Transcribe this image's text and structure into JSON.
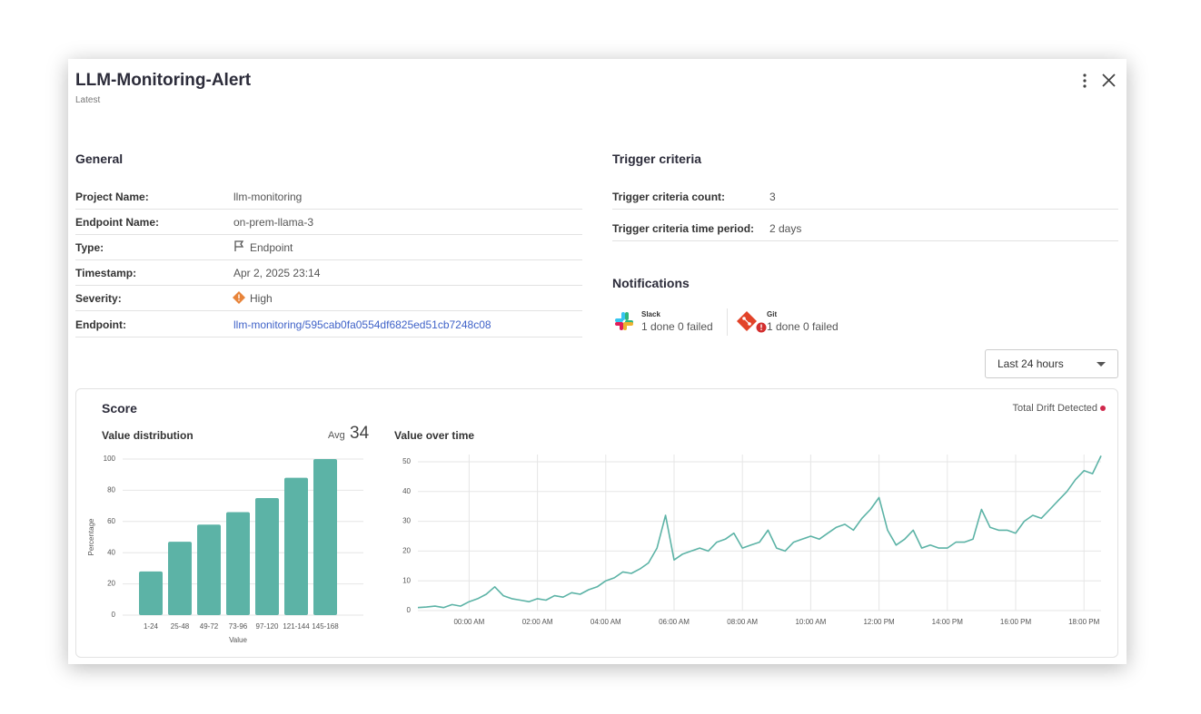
{
  "header": {
    "title": "LLM-Monitoring-Alert",
    "subtitle": "Latest"
  },
  "general": {
    "heading": "General",
    "rows": [
      {
        "label": "Project Name:",
        "value": "llm-monitoring"
      },
      {
        "label": "Endpoint Name:",
        "value": "on-prem-llama-3"
      },
      {
        "label": "Type:",
        "value": "Endpoint"
      },
      {
        "label": "Timestamp:",
        "value": "Apr 2, 2025 23:14"
      },
      {
        "label": "Severity:",
        "value": "High"
      },
      {
        "label": "Endpoint:",
        "value": "llm-monitoring/595cab0fa0554df6825ed51cb7248c08"
      }
    ]
  },
  "trigger": {
    "heading": "Trigger criteria",
    "rows": [
      {
        "label": "Trigger criteria count:",
        "value": "3"
      },
      {
        "label": "Trigger criteria time period:",
        "value": "2 days"
      }
    ]
  },
  "notifications": {
    "heading": "Notifications",
    "items": [
      {
        "name": "Slack",
        "done": "1 done",
        "failed": "0 failed"
      },
      {
        "name": "Git",
        "done": "1 done",
        "failed": "0 failed"
      }
    ]
  },
  "time_range": "Last 24 hours",
  "score": {
    "title": "Score",
    "drift": "Total Drift Detected",
    "avg_label": "Avg",
    "avg": "34"
  },
  "chart_data": [
    {
      "type": "bar",
      "title": "Value distribution",
      "xlabel": "Value",
      "ylabel": "Percentage",
      "categories": [
        "1-24",
        "25-48",
        "49-72",
        "73-96",
        "97-120",
        "121-144",
        "145-168"
      ],
      "values": [
        28,
        47,
        58,
        66,
        75,
        88,
        100
      ],
      "color": "#5cb3a6",
      "ylim": [
        0,
        100
      ],
      "yticks": [
        0,
        20,
        40,
        60,
        80,
        100
      ],
      "grid": true
    },
    {
      "type": "line",
      "title": "Value over time",
      "categories": [
        null,
        null,
        null,
        null,
        null,
        null,
        "00:00 AM",
        null,
        null,
        null,
        null,
        null,
        null,
        null,
        "02:00 AM",
        null,
        null,
        null,
        null,
        null,
        null,
        null,
        "04:00 AM",
        null,
        null,
        null,
        null,
        null,
        null,
        null,
        "06:00 AM",
        null,
        null,
        null,
        null,
        null,
        null,
        null,
        "08:00 AM",
        null,
        null,
        null,
        null,
        null,
        null,
        null,
        "10:00 AM",
        null,
        null,
        null,
        null,
        null,
        null,
        null,
        "12:00 PM",
        null,
        null,
        null,
        null,
        null,
        null,
        null,
        "14:00 PM",
        null,
        null,
        null,
        null,
        null,
        null,
        null,
        "16:00 PM",
        null,
        null,
        null,
        null,
        null,
        null,
        null,
        "18:00 PM",
        null,
        null
      ],
      "values": [
        1,
        1.2,
        1.5,
        1,
        2,
        1.5,
        3,
        4,
        5.5,
        8,
        5,
        4,
        3.5,
        3,
        4,
        3.5,
        5,
        4.5,
        6,
        5.5,
        7,
        8,
        10,
        11,
        13,
        12.5,
        14,
        16,
        21,
        32,
        17,
        19,
        20,
        21,
        20,
        23,
        24,
        26,
        21,
        22,
        23,
        27,
        21,
        20,
        23,
        24,
        25,
        24,
        26,
        28,
        29,
        27,
        31,
        34,
        38,
        27,
        22,
        24,
        27,
        21,
        22,
        21,
        21,
        23,
        23,
        24,
        34,
        28,
        27,
        27,
        26,
        30,
        32,
        31,
        34,
        37,
        40,
        44,
        47,
        46,
        52
      ],
      "color": "#5cb3a6",
      "ylim": [
        0,
        50
      ],
      "yticks": [
        0,
        10,
        20,
        30,
        40,
        50
      ],
      "grid": true
    }
  ]
}
